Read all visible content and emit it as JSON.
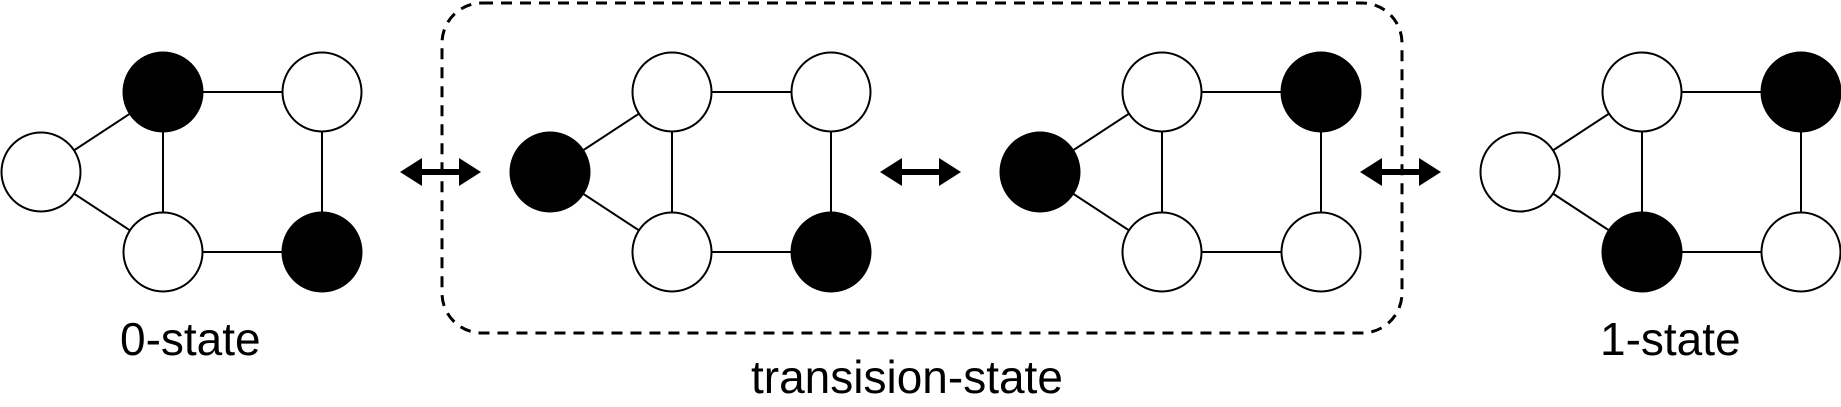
{
  "labels": {
    "zero_state": "0-state",
    "transition_state": "transision-state",
    "one_state": "1-state"
  },
  "colors": {
    "filled": "#000000",
    "empty": "#ffffff",
    "line": "#000000"
  },
  "graphs": [
    {
      "name": "graph-0-state",
      "filled": [
        "top-left",
        "bottom-right"
      ]
    },
    {
      "name": "graph-transition-a",
      "filled": [
        "left",
        "bottom-right"
      ]
    },
    {
      "name": "graph-transition-b",
      "filled": [
        "left",
        "top-right"
      ]
    },
    {
      "name": "graph-1-state",
      "filled": [
        "top-right",
        "bottom-left"
      ]
    }
  ]
}
